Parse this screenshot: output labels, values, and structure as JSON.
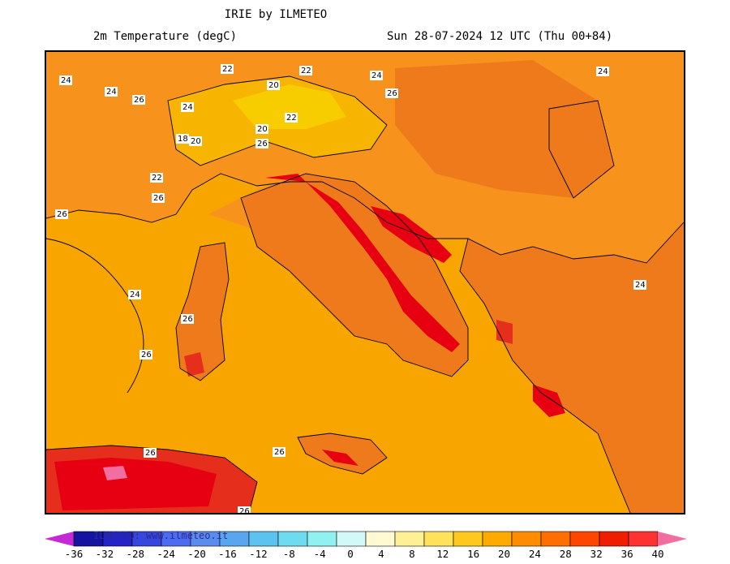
{
  "header": {
    "title": "IRIE by ILMETEO",
    "subtitle": "2m Temperature (degC)",
    "datetime": "Sun 28-07-2024 12 UTC (Thu 00+84)"
  },
  "map": {
    "contour_labels": [
      "24",
      "24",
      "26",
      "22",
      "22",
      "24",
      "20",
      "24",
      "26",
      "22",
      "18",
      "20",
      "20",
      "26",
      "22",
      "26",
      "26",
      "24",
      "24",
      "26",
      "26",
      "26",
      "26",
      "26"
    ],
    "colors": {
      "c20": "#f8cd00",
      "c22": "#f7b400",
      "c24": "#f9a500",
      "c26": "#f7931c",
      "c28": "#ef7a1c",
      "c32": "#e8541c",
      "c36": "#e52f1c",
      "c40": "#e60012",
      "c44": "#f06fa0"
    }
  },
  "legend": {
    "watermark": "ILMETEO: www.ilmeteo.it",
    "ticks": [
      "-36",
      "-32",
      "-28",
      "-24",
      "-20",
      "-16",
      "-12",
      "-8",
      "-4",
      "0",
      "4",
      "8",
      "12",
      "16",
      "20",
      "24",
      "28",
      "32",
      "36",
      "40"
    ],
    "colors": [
      "#c32ad6",
      "#1414a0",
      "#2323c8",
      "#3746dc",
      "#4c6bf0",
      "#5a8cf0",
      "#5aa5f0",
      "#5ac3f0",
      "#6edcf0",
      "#91f0f0",
      "#d2f8f8",
      "#fffad2",
      "#fff096",
      "#ffe15a",
      "#ffc81e",
      "#ffaa00",
      "#ff8c00",
      "#ff6e00",
      "#ff4600",
      "#f01e00",
      "#ff3232",
      "#f06fa0"
    ]
  }
}
